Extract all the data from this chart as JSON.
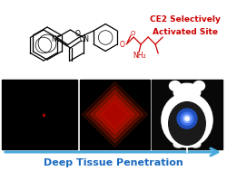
{
  "bg_color": "#ffffff",
  "title_text": "Deep Tissue Penetration",
  "title_color": "#1a6abf",
  "ce2_text_line1": "CE2 Selectively",
  "ce2_text_line2": "Activated Site",
  "ce2_color": "#cc0000",
  "arrow_color": "#4aabdb",
  "arrow_fill": "#4aabdb",
  "panel1_color": "#000000",
  "panel2_color": "#000000",
  "panel3_color": "#0a0a0a",
  "struct_lw": 0.9,
  "struct_color": "#000000",
  "red_struct_color": "#cc0000",
  "fig_width": 2.51,
  "fig_height": 1.89,
  "dpi": 100
}
